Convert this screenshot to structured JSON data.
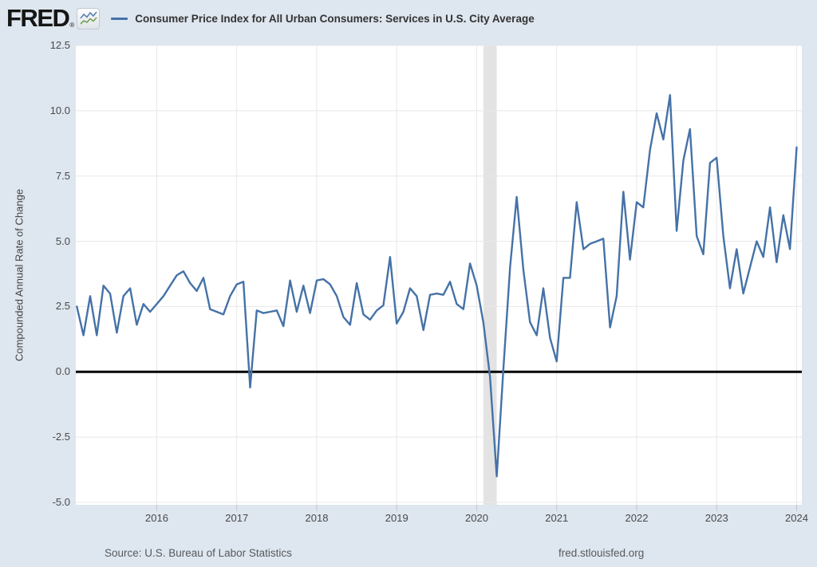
{
  "header": {
    "logo_text": "FRED",
    "logo_registered": "®",
    "legend_label": "Consumer Price Index for All Urban Consumers: Services in U.S. City Average"
  },
  "footer": {
    "source": "Source: U.S. Bureau of Labor Statistics",
    "site": "fred.stlouisfed.org"
  },
  "colors": {
    "series_line": "#4572a7",
    "zero_line": "#000000",
    "plot_background": "#ffffff",
    "page_background": "#dee6ef",
    "gridline": "#e8e8e8",
    "recession_band": "#e3e3e3",
    "tick_mark": "#c0c6cd",
    "logo_icon_line_blue": "#5b84b1",
    "logo_icon_line_green": "#74a253"
  },
  "chart_data": {
    "type": "line",
    "title": "Consumer Price Index for All Urban Consumers: Services in U.S. City Average",
    "xlabel": "",
    "ylabel": "Compounded Annual Rate of Change",
    "units": "Compounded Annual Rate of Change, percent",
    "frequency": "monthly",
    "x_start": "2015-01",
    "x_end": "2024-01",
    "ylim": [
      -5.0,
      12.5
    ],
    "y_ticks": [
      12.5,
      10.0,
      7.5,
      5.0,
      2.5,
      0.0,
      -2.5,
      -5.0
    ],
    "x_tick_labels": [
      "2016",
      "2017",
      "2018",
      "2019",
      "2020",
      "2021",
      "2022",
      "2023",
      "2024"
    ],
    "grid": true,
    "legend_position": "top",
    "zero_line": 0.0,
    "recession_shading": {
      "start": "2020-02",
      "end": "2020-04"
    },
    "series": [
      {
        "name": "Consumer Price Index for All Urban Consumers: Services in U.S. City Average",
        "values": [
          2.5,
          1.4,
          2.9,
          1.4,
          3.3,
          3.0,
          1.5,
          2.9,
          3.2,
          1.8,
          2.6,
          2.3,
          2.6,
          2.9,
          3.3,
          3.7,
          3.85,
          3.4,
          3.1,
          3.6,
          2.4,
          2.3,
          2.2,
          2.9,
          3.35,
          3.45,
          -0.6,
          2.35,
          2.25,
          2.3,
          2.35,
          1.75,
          3.5,
          2.3,
          3.3,
          2.25,
          3.5,
          3.55,
          3.35,
          2.9,
          2.1,
          1.8,
          3.4,
          2.2,
          2.0,
          2.35,
          2.55,
          4.4,
          1.85,
          2.3,
          3.2,
          2.9,
          1.6,
          2.95,
          3.0,
          2.95,
          3.45,
          2.6,
          2.4,
          4.15,
          3.3,
          1.9,
          -0.2,
          -4.0,
          0.1,
          4.0,
          6.7,
          3.9,
          1.9,
          1.4,
          3.2,
          1.3,
          0.4,
          3.6,
          3.6,
          6.5,
          4.7,
          4.9,
          5.0,
          5.1,
          1.7,
          2.9,
          6.9,
          4.3,
          6.5,
          6.3,
          8.5,
          9.9,
          8.9,
          10.6,
          5.4,
          8.1,
          9.3,
          5.2,
          4.5,
          8.0,
          8.2,
          5.2,
          3.2,
          4.7,
          3.0,
          4.0,
          5.0,
          4.4,
          6.3,
          4.2,
          6.0,
          4.7,
          8.6
        ]
      }
    ]
  }
}
